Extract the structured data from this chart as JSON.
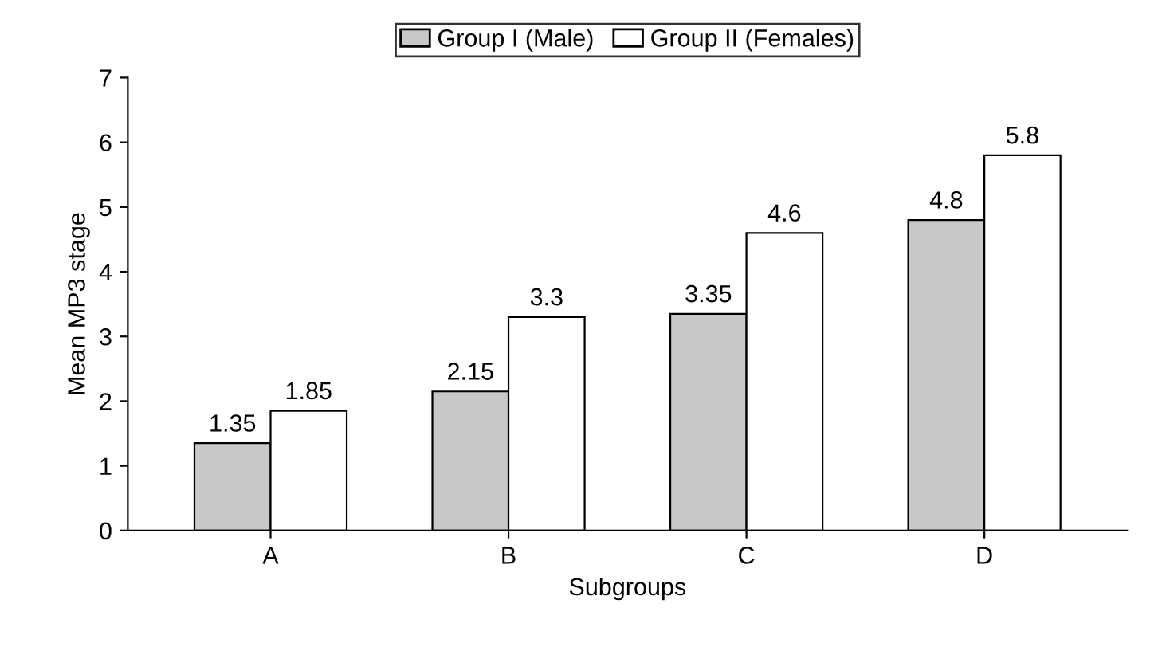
{
  "chart_data": {
    "type": "bar",
    "xlabel": "Subgroups",
    "ylabel": "Mean MP3 stage",
    "categories": [
      "A",
      "B",
      "C",
      "D"
    ],
    "series": [
      {
        "name": "Group I (Male)",
        "color": "#c8c8c8",
        "values": [
          1.35,
          2.15,
          3.35,
          4.8
        ]
      },
      {
        "name": "Group II (Females)",
        "color": "#ffffff",
        "values": [
          1.85,
          3.3,
          4.6,
          5.8
        ]
      }
    ],
    "ylim": [
      0,
      7
    ],
    "yticks": [
      0,
      1,
      2,
      3,
      4,
      5,
      6,
      7
    ],
    "grid": false,
    "legend": "top",
    "data_labels": true
  }
}
